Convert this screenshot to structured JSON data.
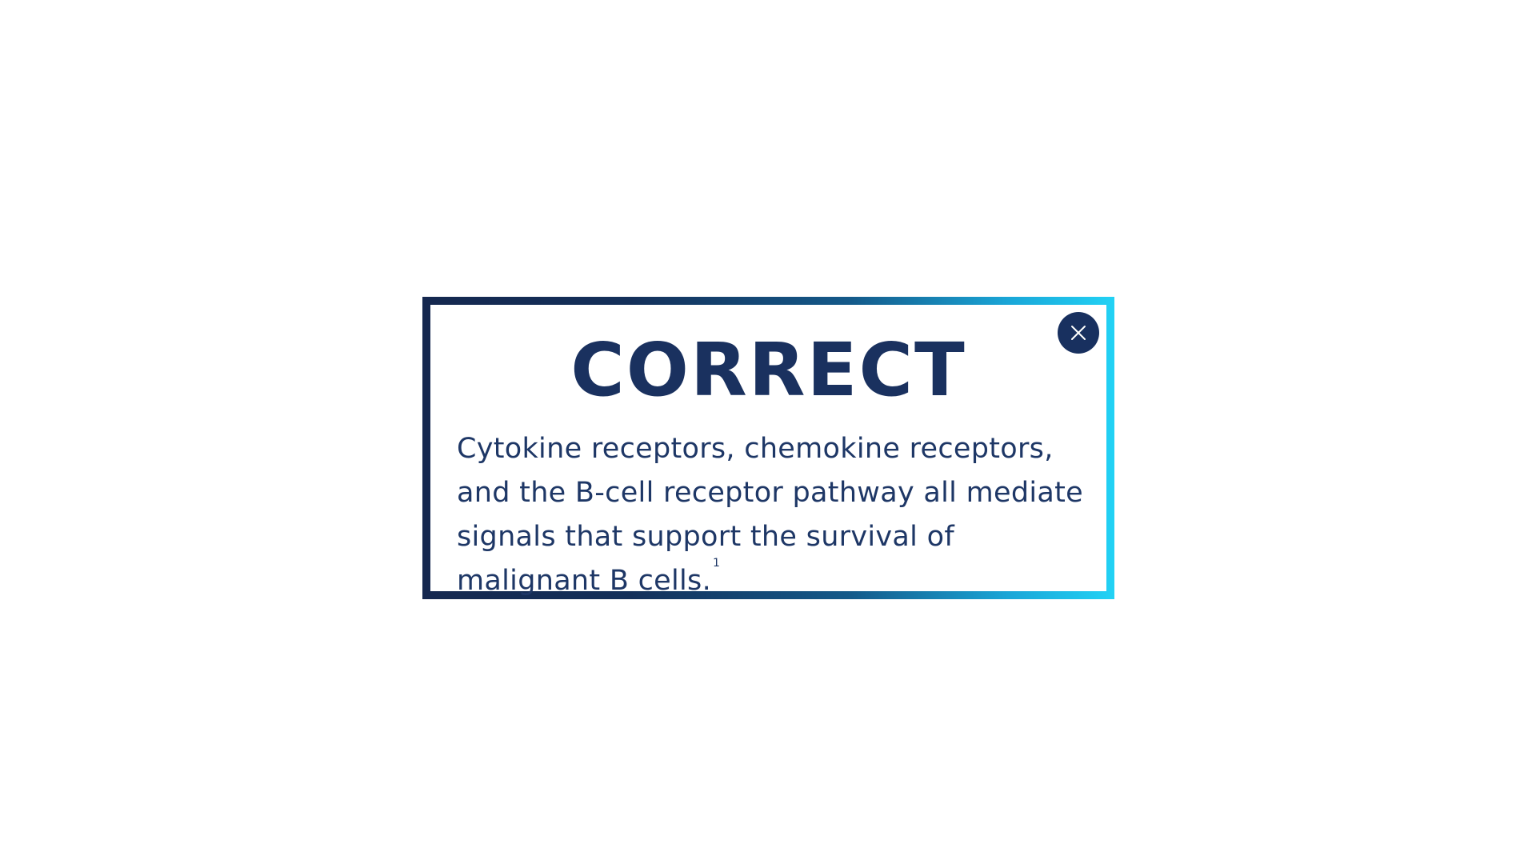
{
  "modal": {
    "title": "CORRECT",
    "message": "Cytokine receptors, chemokine receptors, and the B-cell receptor pathway all mediate signals that support the survival of malignant B cells.",
    "footnote_ref": "1",
    "close_icon": "close-icon"
  },
  "colors": {
    "title": "#1a315f",
    "text": "#1e3766",
    "close_button_bg": "#18305f",
    "frame_gradient_start": "#15284f",
    "frame_gradient_end": "#22d2f5",
    "background": "#ffffff"
  }
}
